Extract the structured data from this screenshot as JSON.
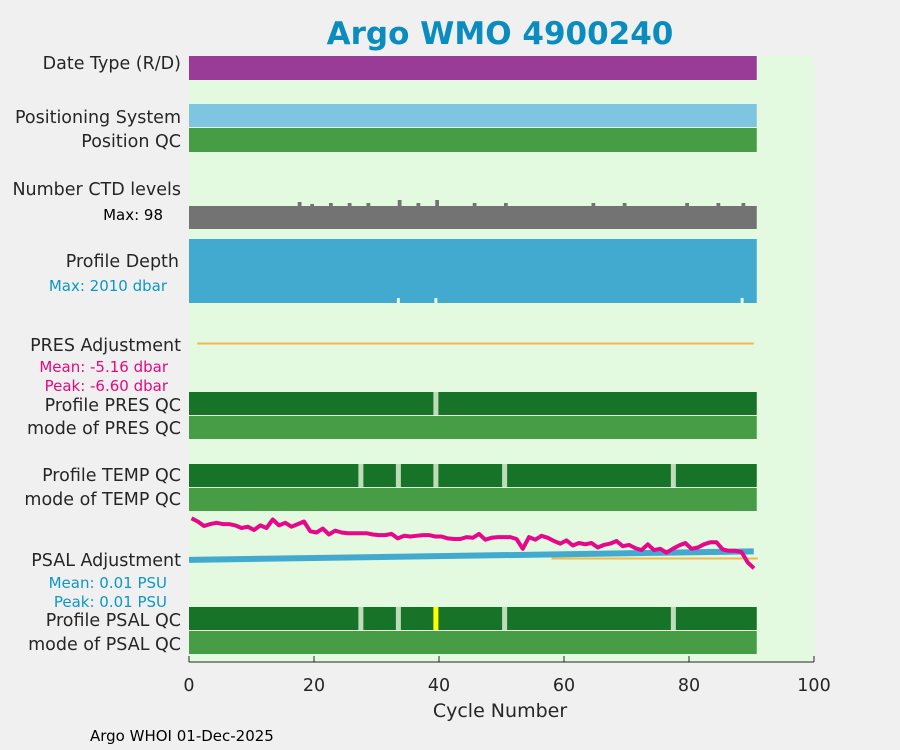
{
  "title": "Argo WMO 4900240",
  "footer": "Argo WHOI 01-Dec-2025",
  "colors": {
    "title": "#0a8cbf",
    "plot_bg": "#e3f9e0",
    "date_type": "#993c98",
    "positioning": "#7ec5df",
    "qc_good": "#469d45",
    "qc_dark": "#177328",
    "qc_gap": "#bfdcb8",
    "qc_yellow": "#ffff00",
    "ctd": "#737373",
    "depth": "#42aacf",
    "pres_adj": "#f1b84c",
    "salt_adj": "#42aacf",
    "magenta": "#e6078a",
    "accent_blue": "#0d97c6",
    "accent_magenta": "#e2097f"
  },
  "row_labels": {
    "date_type": "Date Type (R/D)",
    "positioning_system": "Positioning System",
    "position_qc": "Position QC",
    "ctd_levels": "Number CTD levels",
    "ctd_max": "Max: 98",
    "profile_depth": "Profile Depth",
    "depth_max": "Max: 2010 dbar",
    "pres_adjustment": "PRES Adjustment",
    "pres_mean": "Mean: -5.16 dbar",
    "pres_peak": "Peak: -6.60 dbar",
    "profile_pres_qc": "Profile PRES QC",
    "mode_pres_qc": "mode of PRES QC",
    "profile_temp_qc": "Profile TEMP QC",
    "mode_temp_qc": "mode of TEMP QC",
    "psal_adjustment": "PSAL Adjustment",
    "psal_mean": "Mean: 0.01 PSU",
    "psal_peak": "Peak: 0.01 PSU",
    "profile_psal_qc": "Profile PSAL QC",
    "mode_psal_qc": "mode of PSAL QC"
  },
  "chart_data": {
    "type": "timeline",
    "xlabel": "Cycle Number",
    "xlim": [
      0,
      100
    ],
    "xticks": [
      0,
      20,
      40,
      60,
      80,
      100
    ],
    "cycle_range": [
      1,
      91
    ],
    "profile_pres_qc_gaps": [
      40
    ],
    "profile_temp_qc_gaps": [
      28,
      34,
      40,
      51,
      78
    ],
    "profile_psal_qc_gaps": [
      28,
      34,
      51,
      78
    ],
    "profile_psal_qc_flagged": [
      40
    ],
    "ctd_levels": {
      "max": 98,
      "spikes": [
        {
          "cycle": 34,
          "value": 98
        },
        {
          "cycle": 40,
          "value": 98
        },
        {
          "cycle": 18,
          "value": 96
        },
        {
          "cycle": 20,
          "value": 94
        },
        {
          "cycle": 23,
          "value": 95
        },
        {
          "cycle": 26,
          "value": 95
        },
        {
          "cycle": 29,
          "value": 95
        },
        {
          "cycle": 37,
          "value": 95
        },
        {
          "cycle": 46,
          "value": 95
        },
        {
          "cycle": 51,
          "value": 95
        },
        {
          "cycle": 65,
          "value": 95
        },
        {
          "cycle": 70,
          "value": 95
        },
        {
          "cycle": 80,
          "value": 95
        },
        {
          "cycle": 85,
          "value": 95
        },
        {
          "cycle": 89,
          "value": 95
        }
      ]
    },
    "profile_depth": {
      "max_dbar": 2010,
      "shallow_cycles": [
        34,
        40,
        89
      ]
    },
    "pres_adjustment": {
      "mean_dbar": -5.16,
      "peak_dbar": -6.6
    },
    "psal_adjustment": {
      "mean_psu": 0.01,
      "peak_psu": 0.01,
      "adjustment_fraction": {
        "x": [
          1,
          91
        ],
        "y": [
          0.0,
          0.35
        ]
      },
      "temp_profile": {
        "x": [
          1,
          2,
          3,
          4,
          5,
          6,
          7,
          8,
          9,
          10,
          11,
          12,
          13,
          14,
          15,
          16,
          17,
          18,
          19,
          20,
          21,
          22,
          23,
          24,
          25,
          26,
          27,
          28,
          29,
          30,
          31,
          32,
          33,
          34,
          35,
          36,
          37,
          38,
          39,
          40,
          41,
          42,
          43,
          44,
          45,
          46,
          47,
          48,
          49,
          50,
          51,
          52,
          53,
          54,
          55,
          56,
          57,
          58,
          59,
          60,
          61,
          62,
          63,
          64,
          65,
          66,
          67,
          68,
          69,
          70,
          71,
          72,
          73,
          74,
          75,
          76,
          77,
          78,
          79,
          80,
          81,
          82,
          83,
          84,
          85,
          86,
          87,
          88,
          89,
          90,
          91
        ],
        "y": [
          0.95,
          0.9,
          0.83,
          0.86,
          0.88,
          0.86,
          0.86,
          0.84,
          0.8,
          0.82,
          0.77,
          0.84,
          0.8,
          0.93,
          0.84,
          0.88,
          0.82,
          0.86,
          0.9,
          0.75,
          0.73,
          0.79,
          0.7,
          0.76,
          0.73,
          0.72,
          0.72,
          0.72,
          0.72,
          0.7,
          0.69,
          0.69,
          0.71,
          0.64,
          0.68,
          0.67,
          0.68,
          0.69,
          0.69,
          0.67,
          0.67,
          0.64,
          0.63,
          0.63,
          0.66,
          0.65,
          0.71,
          0.62,
          0.65,
          0.66,
          0.66,
          0.66,
          0.63,
          0.48,
          0.66,
          0.62,
          0.68,
          0.65,
          0.6,
          0.56,
          0.61,
          0.53,
          0.57,
          0.55,
          0.57,
          0.5,
          0.54,
          0.56,
          0.6,
          0.52,
          0.54,
          0.49,
          0.46,
          0.55,
          0.46,
          0.48,
          0.42,
          0.48,
          0.53,
          0.57,
          0.48,
          0.5,
          0.55,
          0.58,
          0.58,
          0.47,
          0.45,
          0.45,
          0.43,
          0.27,
          0.18
        ]
      }
    }
  }
}
